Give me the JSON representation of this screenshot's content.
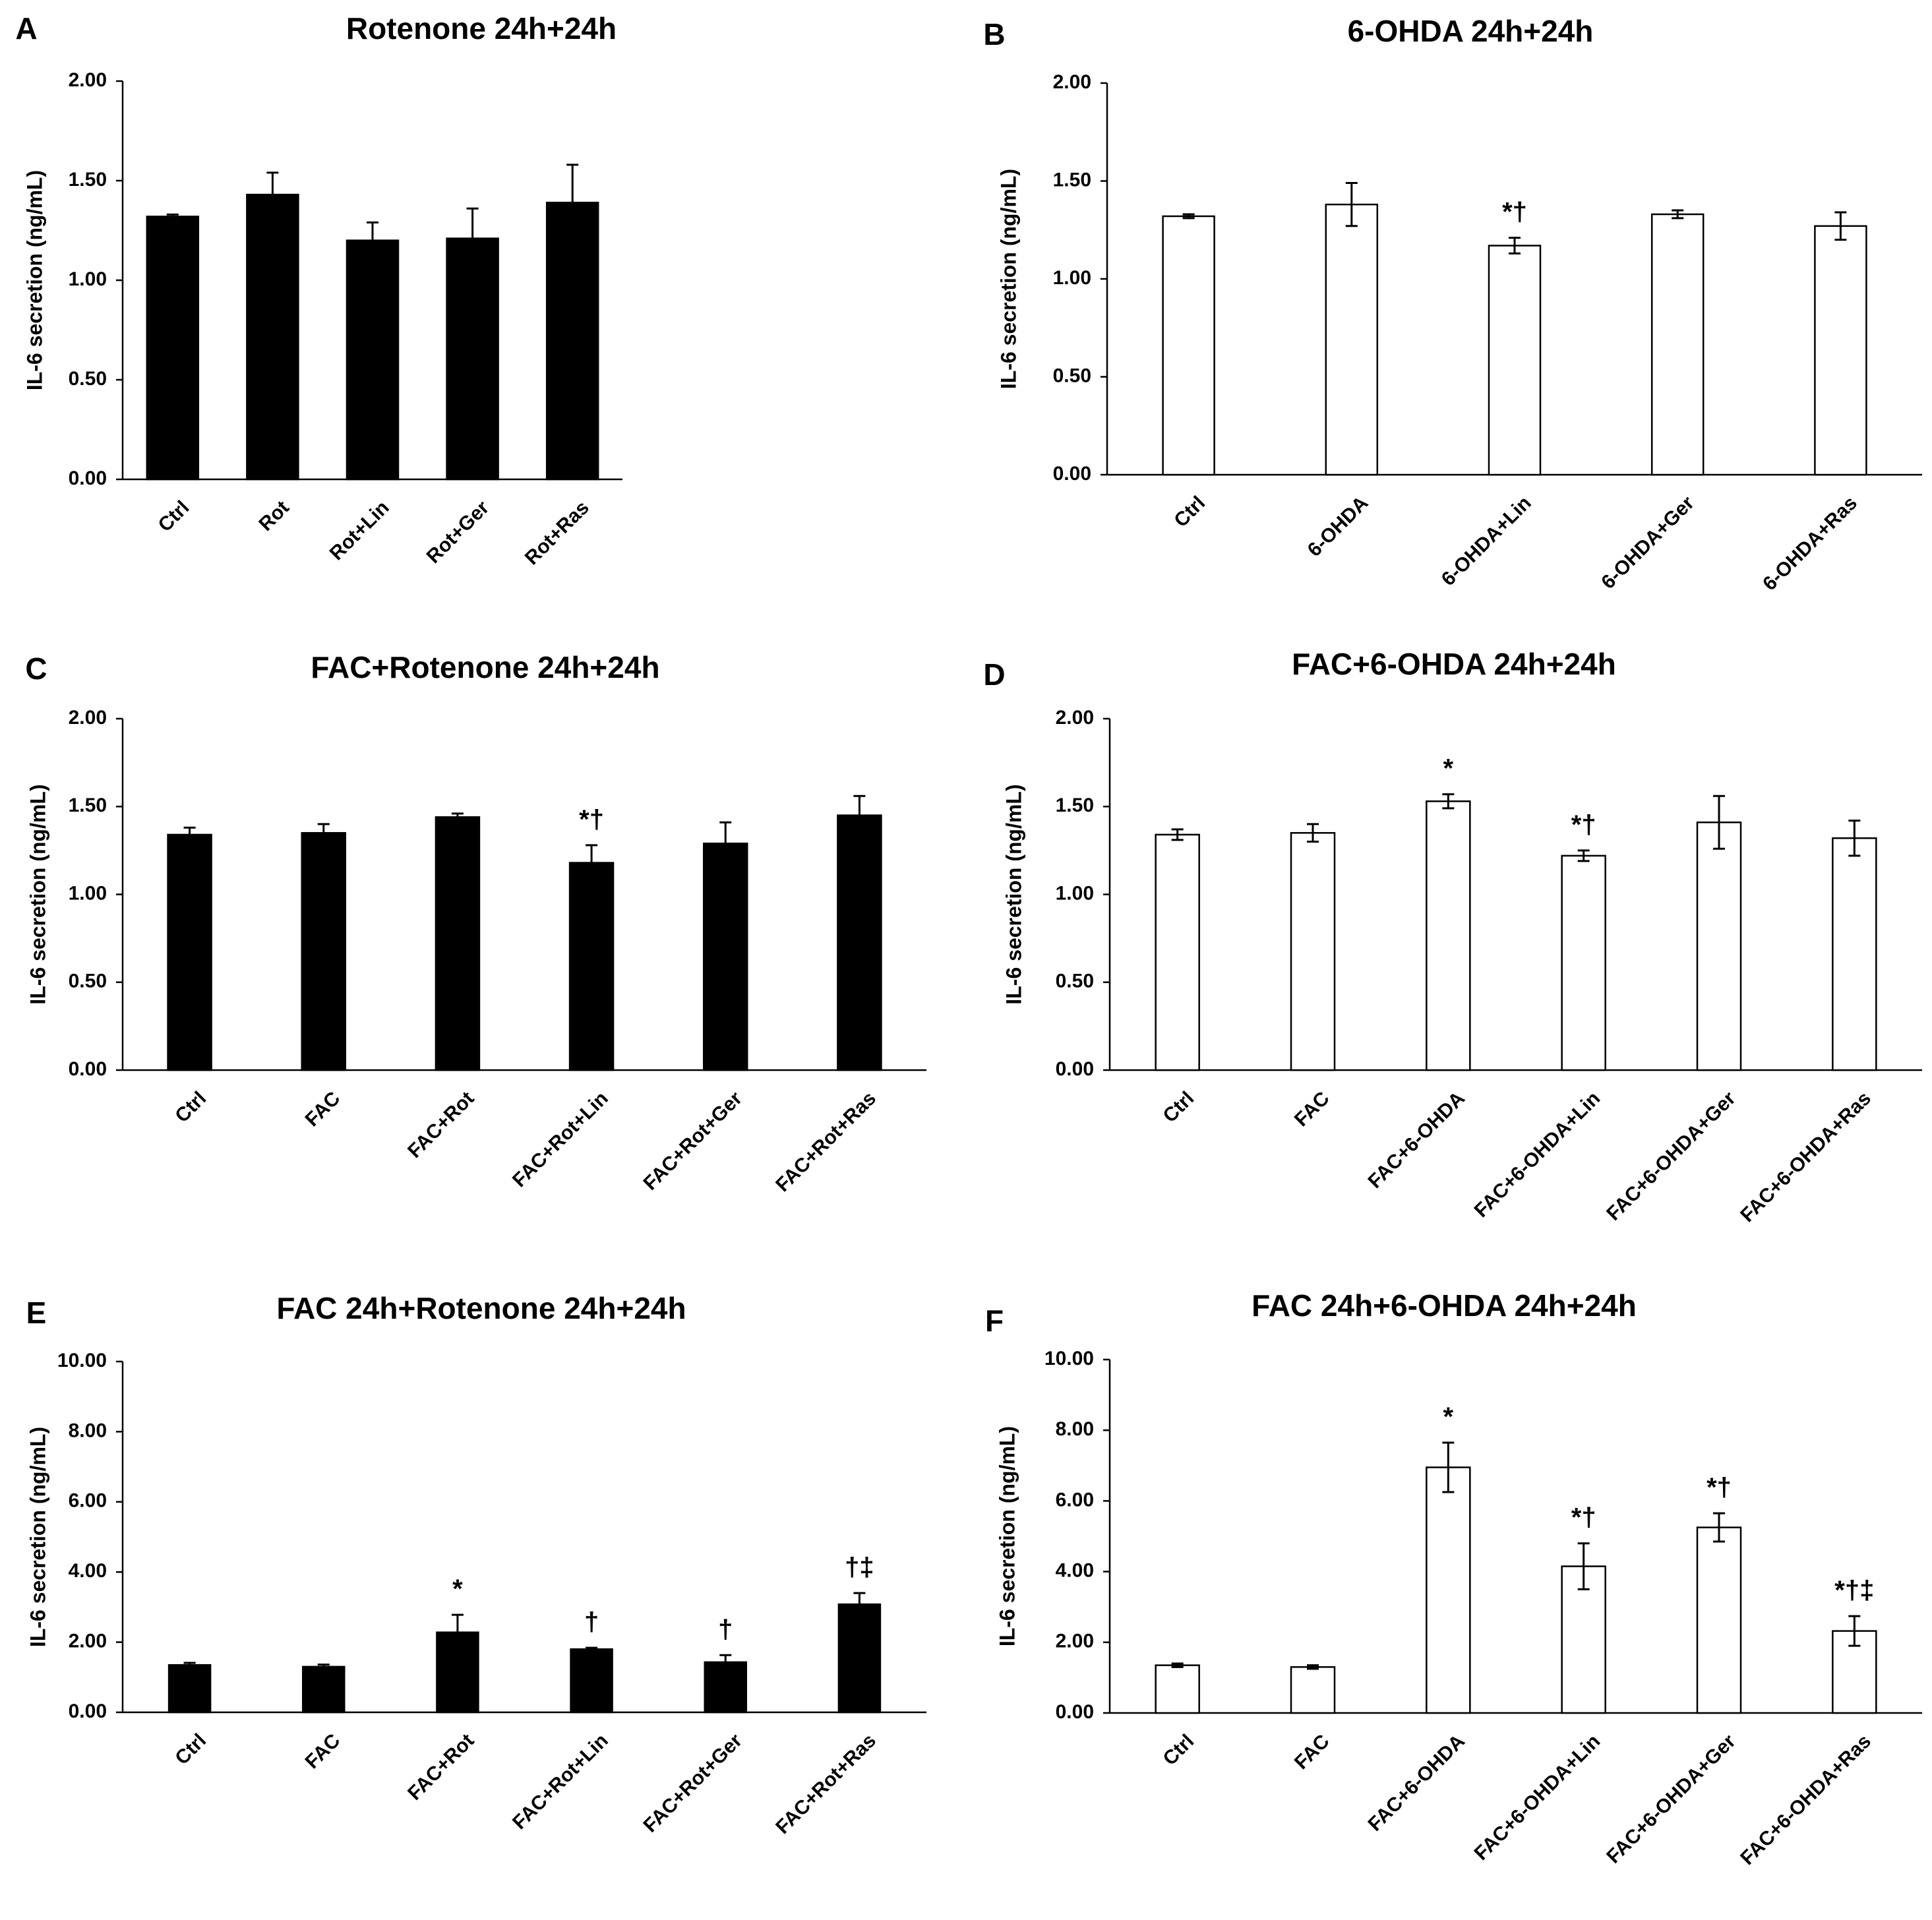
{
  "figure": {
    "colors": {
      "filled_bar": "#000000",
      "open_bar": "#ffffff",
      "outline": "#000000"
    }
  },
  "chart_data": [
    {
      "panel": "A",
      "type": "bar",
      "title": "Rotenone 24h+24h",
      "ylabel": "IL-6 secretion (ng/mL)",
      "ylim": [
        0,
        2
      ],
      "yticks": [
        "0.00",
        "0.50",
        "1.00",
        "1.50",
        "2.00"
      ],
      "bar_fill": "black",
      "categories": [
        "Ctrl",
        "Rot",
        "Rot+Lin",
        "Rot+Ger",
        "Rot+Ras"
      ],
      "values": [
        1.32,
        1.43,
        1.2,
        1.21,
        1.39
      ],
      "errors": [
        0.01,
        0.11,
        0.09,
        0.15,
        0.19
      ],
      "error_style": "upper",
      "significance": [
        "",
        "",
        "",
        "",
        ""
      ]
    },
    {
      "panel": "B",
      "type": "bar",
      "title": "6-OHDA 24h+24h",
      "ylabel": "IL-6 secretion (ng/mL)",
      "ylim": [
        0,
        2
      ],
      "yticks": [
        "0.00",
        "0.50",
        "1.00",
        "1.50",
        "2.00"
      ],
      "bar_fill": "white",
      "categories": [
        "Ctrl",
        "6-OHDA",
        "6-OHDA+Lin",
        "6-OHDA+Ger",
        "6-OHDA+Ras"
      ],
      "values": [
        1.32,
        1.38,
        1.17,
        1.33,
        1.27
      ],
      "errors": [
        0.01,
        0.11,
        0.04,
        0.02,
        0.07
      ],
      "error_style": "both",
      "significance": [
        "",
        "",
        "*†",
        "",
        ""
      ]
    },
    {
      "panel": "C",
      "type": "bar",
      "title": "FAC+Rotenone 24h+24h",
      "ylabel": "IL-6 secretion (ng/mL)",
      "ylim": [
        0,
        2
      ],
      "yticks": [
        "0.00",
        "0.50",
        "1.00",
        "1.50",
        "2.00"
      ],
      "bar_fill": "black",
      "categories": [
        "Ctrl",
        "FAC",
        "FAC+Rot",
        "FAC+Rot+Lin",
        "FAC+Rot+Ger",
        "FAC+Rot+Ras"
      ],
      "values": [
        1.34,
        1.35,
        1.44,
        1.18,
        1.29,
        1.45
      ],
      "errors": [
        0.04,
        0.05,
        0.02,
        0.1,
        0.12,
        0.11
      ],
      "error_style": "upper",
      "significance": [
        "",
        "",
        "",
        "*†",
        "",
        ""
      ]
    },
    {
      "panel": "D",
      "type": "bar",
      "title": "FAC+6-OHDA 24h+24h",
      "ylabel": "IL-6 secretion (ng/mL)",
      "ylim": [
        0,
        2
      ],
      "yticks": [
        "0.00",
        "0.50",
        "1.00",
        "1.50",
        "2.00"
      ],
      "bar_fill": "white",
      "categories": [
        "Ctrl",
        "FAC",
        "FAC+6-OHDA",
        "FAC+6-OHDA+Lin",
        "FAC+6-OHDA+Ger",
        "FAC+6-OHDA+Ras"
      ],
      "values": [
        1.34,
        1.35,
        1.53,
        1.22,
        1.41,
        1.32
      ],
      "errors": [
        0.03,
        0.05,
        0.04,
        0.03,
        0.15,
        0.1
      ],
      "error_style": "both",
      "significance": [
        "",
        "",
        "*",
        "*†",
        "",
        ""
      ]
    },
    {
      "panel": "E",
      "type": "bar",
      "title": "FAC 24h+Rotenone 24h+24h",
      "ylabel": "IL-6 secretion (ng/mL)",
      "ylim": [
        0,
        10
      ],
      "yticks": [
        "0.00",
        "2.00",
        "4.00",
        "6.00",
        "8.00",
        "10.00"
      ],
      "bar_fill": "black",
      "categories": [
        "Ctrl",
        "FAC",
        "FAC+Rot",
        "FAC+Rot+Lin",
        "FAC+Rot+Ger",
        "FAC+Rot+Ras"
      ],
      "values": [
        1.35,
        1.3,
        2.28,
        1.8,
        1.43,
        3.08
      ],
      "errors": [
        0.06,
        0.06,
        0.5,
        0.04,
        0.2,
        0.32
      ],
      "error_style": "upper",
      "significance": [
        "",
        "",
        "*",
        "†",
        "†",
        "†‡"
      ]
    },
    {
      "panel": "F",
      "type": "bar",
      "title": "FAC 24h+6-OHDA 24h+24h",
      "ylabel": "IL-6 secretion (ng/mL)",
      "ylim": [
        0,
        10
      ],
      "yticks": [
        "0.00",
        "2.00",
        "4.00",
        "6.00",
        "8.00",
        "10.00"
      ],
      "bar_fill": "white",
      "categories": [
        "Ctrl",
        "FAC",
        "FAC+6-OHDA",
        "FAC+6-OHDA+Lin",
        "FAC+6-OHDA+Ger",
        "FAC+6-OHDA+Ras"
      ],
      "values": [
        1.35,
        1.3,
        6.95,
        4.15,
        5.25,
        2.32
      ],
      "errors": [
        0.05,
        0.05,
        0.7,
        0.65,
        0.4,
        0.42
      ],
      "error_style": "both",
      "significance": [
        "",
        "",
        "*",
        "*†",
        "*†",
        "*†‡"
      ]
    }
  ]
}
